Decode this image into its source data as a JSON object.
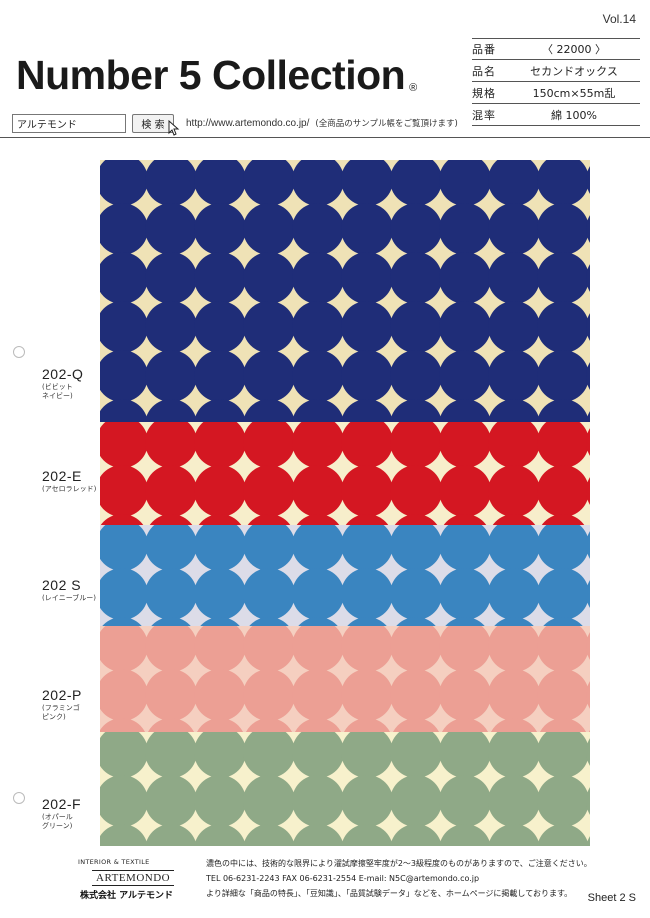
{
  "header": {
    "volume": "Vol.14",
    "title": "Number 5 Collection",
    "registered": "®"
  },
  "spec": {
    "rows": [
      {
        "key": "品番",
        "value": "〈 22000 〉"
      },
      {
        "key": "品名",
        "value": "セカンドオックス"
      },
      {
        "key": "規格",
        "value": "150cm×55m乱"
      },
      {
        "key": "混率",
        "value": "綿 100%"
      }
    ]
  },
  "search": {
    "input_value": "アルテモンド",
    "button_label": "検 索",
    "url": "http://www.artemondo.co.jp/",
    "note": "(全商品のサンプル帳をご覧頂けます)"
  },
  "swatches": [
    {
      "code": "202-Q",
      "name": "(ビビット\n   ネイビー)",
      "dot_color": "#1f2d78",
      "bg_color": "#efe2b6"
    },
    {
      "code": "202-E",
      "name": "(アセロラレッド)",
      "dot_color": "#d41722",
      "bg_color": "#f7eecb"
    },
    {
      "code": "202 S",
      "name": "(レイニーブルー)",
      "dot_color": "#3a85c0",
      "bg_color": "#dcdce8"
    },
    {
      "code": "202-P",
      "name": "(フラミンゴ\n   ピンク)",
      "dot_color": "#ec9f94",
      "bg_color": "#f5cfc0"
    },
    {
      "code": "202-F",
      "name": "(オパール\n   グリーン)",
      "dot_color": "#8fa987",
      "bg_color": "#f7f1cc"
    }
  ],
  "footer": {
    "brand_small": "INTERIOR & TEXTILE",
    "brand_logo": "ARTEMONDO",
    "company": "株式会社 アルテモンド",
    "notes": [
      "濃色の中には、技術的な限界により濯試摩擦堅牢度が2～3級程度のものがありますので、ご注意ください。",
      "TEL 06-6231-2243  FAX 06-6231-2554  E-mail: N5C@artemondo.co.jp",
      "より詳細な「商品の特長」、「豆知識」、「品質試験データ」などを、ホームページに掲載しております。"
    ],
    "sheet": "Sheet 2 S"
  }
}
